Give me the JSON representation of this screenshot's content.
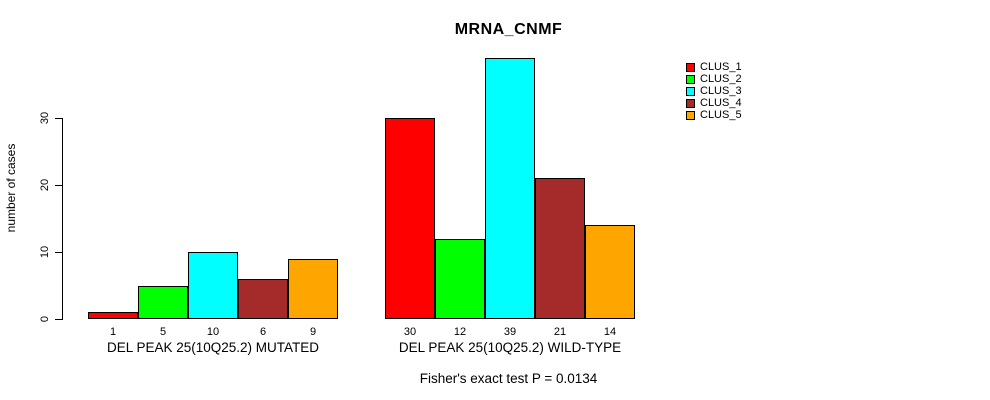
{
  "chart_data": {
    "type": "bar",
    "title": "MRNA_CNMF",
    "ylabel": "number of cases",
    "xlabel": "",
    "yticks": [
      0,
      10,
      20,
      30
    ],
    "ylim": [
      0,
      39
    ],
    "grid": false,
    "legend_position": "right",
    "bar_value_labels": true,
    "categories": [
      "DEL PEAK 25(10Q25.2) MUTATED",
      "DEL PEAK 25(10Q25.2) WILD-TYPE"
    ],
    "series": [
      {
        "name": "CLUS_1",
        "color": "#ff0000",
        "values": [
          1,
          30
        ]
      },
      {
        "name": "CLUS_2",
        "color": "#00ff00",
        "values": [
          5,
          12
        ]
      },
      {
        "name": "CLUS_3",
        "color": "#00ffff",
        "values": [
          10,
          39
        ]
      },
      {
        "name": "CLUS_4",
        "color": "#a52a2a",
        "values": [
          6,
          21
        ]
      },
      {
        "name": "CLUS_5",
        "color": "#ffa500",
        "values": [
          9,
          14
        ]
      }
    ],
    "annotation": "Fisher's exact test P = 0.0134"
  },
  "colors": {
    "axis": "#000000",
    "text": "#000000",
    "background": "#ffffff"
  }
}
